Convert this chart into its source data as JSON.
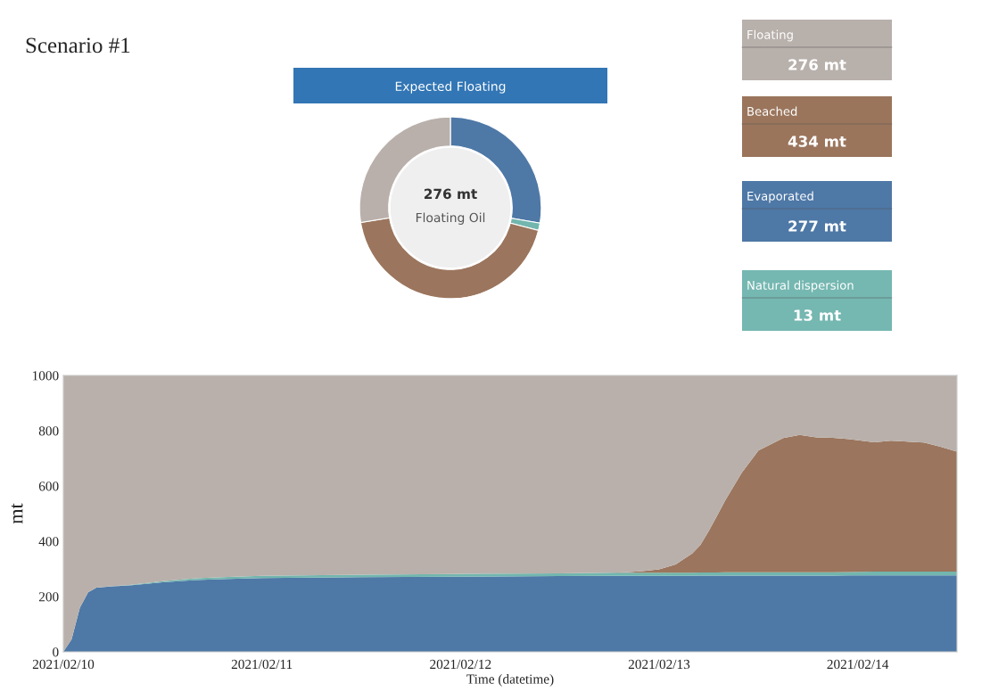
{
  "chart_data": [
    {
      "type": "other",
      "title": "Scenario #1"
    },
    {
      "type": "donut",
      "title": "Expected Floating",
      "annotations": [
        "276 mt",
        "Floating Oil"
      ],
      "categories": [
        null,
        null,
        null,
        null
      ],
      "values": [
        27.7,
        1.3,
        43.4,
        27.6
      ],
      "colors": [
        "#4e78a6",
        "#72b6ae",
        "#9b755d",
        "#b9b0ab"
      ]
    },
    {
      "type": "other",
      "categories": [
        "Floating",
        "Beached",
        "Evaporated",
        "Natural dispersion"
      ],
      "value_labels": [
        "276 mt",
        "434 mt",
        "277 mt",
        "13 mt"
      ],
      "colors": [
        "#b8b0ab",
        "#9a755c",
        "#4e78a6",
        "#75b7b1"
      ]
    },
    {
      "type": "area",
      "stacked": true,
      "xlabel": "Time (datetime)",
      "ylabel": "mt",
      "x": [
        "2021-02-10T00:00",
        "2021-02-10T01:00",
        "2021-02-10T02:00",
        "2021-02-10T03:00",
        "2021-02-10T04:00",
        "2021-02-10T06:00",
        "2021-02-10T08:00",
        "2021-02-10T12:00",
        "2021-02-10T16:00",
        "2021-02-10T20:00",
        "2021-02-11T00:00",
        "2021-02-11T12:00",
        "2021-02-12T00:00",
        "2021-02-12T12:00",
        "2021-02-12T18:00",
        "2021-02-12T20:00",
        "2021-02-12T22:00",
        "2021-02-13T00:00",
        "2021-02-13T02:00",
        "2021-02-13T04:00",
        "2021-02-13T05:00",
        "2021-02-13T06:00",
        "2021-02-13T07:00",
        "2021-02-13T08:00",
        "2021-02-13T09:00",
        "2021-02-13T10:00",
        "2021-02-13T12:00",
        "2021-02-13T15:00",
        "2021-02-13T17:00",
        "2021-02-13T19:00",
        "2021-02-13T21:00",
        "2021-02-13T23:00",
        "2021-02-14T02:00",
        "2021-02-14T04:00",
        "2021-02-14T08:00",
        "2021-02-14T10:00",
        "2021-02-14T12:00"
      ],
      "series": [
        {
          "color": "#4e78a6",
          "values": [
            0,
            45,
            160,
            215,
            232,
            237,
            240,
            252,
            260,
            264,
            267,
            270,
            272,
            274,
            275,
            275,
            275,
            275,
            275,
            275,
            276,
            276,
            276,
            276,
            276,
            276,
            276,
            276,
            276,
            276,
            276,
            277,
            277,
            277,
            277,
            277,
            277
          ]
        },
        {
          "color": "#72b6ae",
          "values": [
            0,
            0,
            0,
            0,
            0,
            1,
            2,
            4,
            6,
            7,
            8,
            9,
            10,
            10,
            11,
            11,
            11,
            11,
            11,
            11,
            11,
            11,
            11,
            12,
            12,
            12,
            12,
            12,
            12,
            12,
            12,
            12,
            13,
            13,
            13,
            13,
            13
          ]
        },
        {
          "color": "#9b755d",
          "values": [
            0,
            0,
            0,
            0,
            0,
            0,
            0,
            0,
            0,
            0,
            0,
            0,
            0,
            0,
            0,
            2,
            6,
            12,
            30,
            70,
            100,
            150,
            205,
            260,
            310,
            360,
            440,
            485,
            497,
            488,
            486,
            480,
            468,
            474,
            467,
            452,
            434
          ]
        },
        {
          "color": "#b9b0ab",
          "values": [
            1000,
            955,
            840,
            785,
            768,
            762,
            758,
            744,
            734,
            729,
            725,
            721,
            718,
            716,
            714,
            712,
            708,
            702,
            684,
            644,
            613,
            563,
            508,
            452,
            402,
            352,
            272,
            227,
            215,
            224,
            226,
            231,
            242,
            236,
            243,
            258,
            276
          ]
        }
      ],
      "xlim": [
        "2021-02-10T00:00",
        "2021-02-14T12:00"
      ],
      "ylim": [
        0,
        1000
      ],
      "yticks": [
        0,
        200,
        400,
        600,
        800,
        1000
      ],
      "xticks": [
        {
          "value": "2021-02-10",
          "label": "2021/02/10"
        },
        {
          "value": "2021-02-11",
          "label": "2021/02/11"
        },
        {
          "value": "2021-02-12",
          "label": "2021/02/12"
        },
        {
          "value": "2021-02-13",
          "label": "2021/02/13"
        },
        {
          "value": "2021-02-14",
          "label": "2021/02/14"
        }
      ]
    }
  ]
}
